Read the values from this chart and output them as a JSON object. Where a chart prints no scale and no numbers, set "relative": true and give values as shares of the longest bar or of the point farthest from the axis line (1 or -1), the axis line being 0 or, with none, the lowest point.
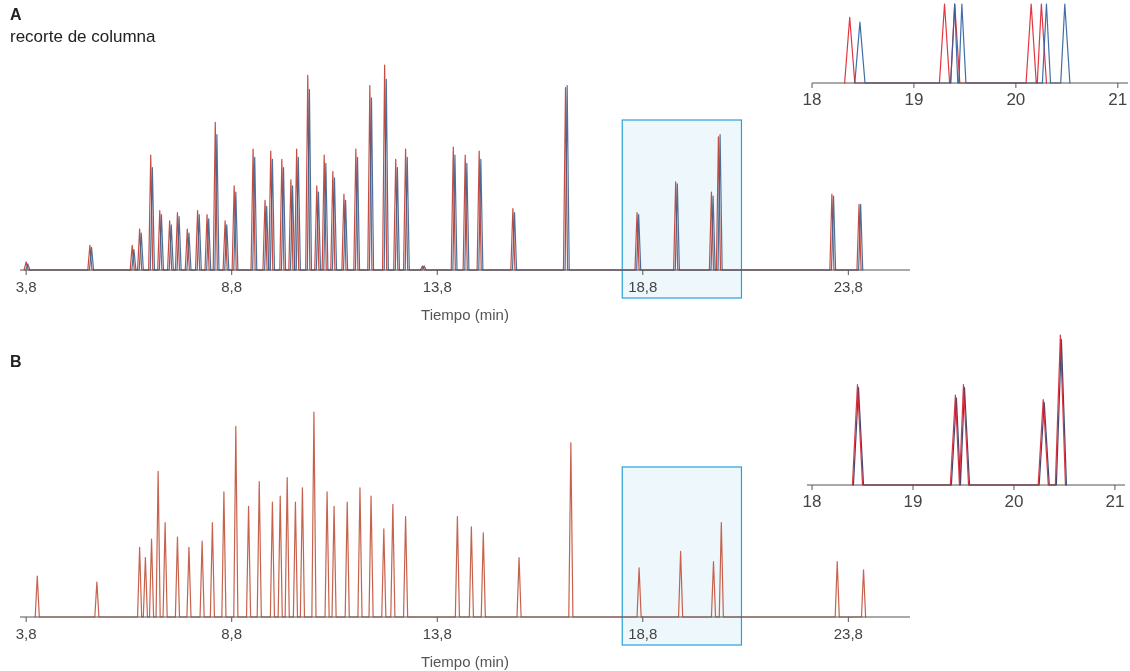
{
  "chart_data": [
    {
      "type": "line",
      "title": "A",
      "subtitle": "recorte de columna",
      "xlabel": "Tiempo (min)",
      "relative": true,
      "xlim": [
        3.65,
        25.3
      ],
      "xticks": [
        {
          "value": 3.8,
          "label": "3,8"
        },
        {
          "value": 8.8,
          "label": "8,8"
        },
        {
          "value": 13.8,
          "label": "13,8"
        },
        {
          "value": 18.8,
          "label": "18,8"
        },
        {
          "value": 23.8,
          "label": "23,8"
        }
      ],
      "bands": [
        {
          "axis": "x",
          "from": 18.3,
          "to": 21.2,
          "color": "#29a3d6"
        }
      ],
      "series": [
        {
          "color": "#c0392b",
          "x": [
            3.75,
            3.8,
            3.85,
            5.3,
            5.35,
            5.4,
            6.33,
            6.38,
            6.43,
            6.51,
            6.56,
            6.61,
            6.78,
            6.83,
            6.88,
            7.0,
            7.05,
            7.1,
            7.24,
            7.29,
            7.34,
            7.43,
            7.48,
            7.53,
            7.67,
            7.72,
            7.77,
            7.92,
            7.97,
            8.02,
            8.15,
            8.2,
            8.25,
            8.35,
            8.4,
            8.45,
            8.59,
            8.64,
            8.69,
            8.81,
            8.86,
            8.91,
            9.27,
            9.32,
            9.37,
            9.56,
            9.61,
            9.66,
            9.7,
            9.75,
            9.8,
            9.97,
            10.02,
            10.07,
            10.19,
            10.24,
            10.29,
            10.33,
            10.38,
            10.43,
            10.6,
            10.65,
            10.7,
            10.82,
            10.87,
            10.92,
            11.0,
            11.05,
            11.1,
            11.21,
            11.26,
            11.31,
            11.48,
            11.53,
            11.58,
            11.77,
            11.82,
            11.87,
            12.11,
            12.16,
            12.21,
            12.47,
            12.52,
            12.57,
            12.74,
            12.79,
            12.84,
            12.98,
            13.03,
            13.08,
            13.39,
            13.44,
            13.49,
            14.14,
            14.19,
            14.24,
            14.43,
            14.48,
            14.53,
            14.77,
            14.82,
            14.87,
            15.59,
            15.64,
            15.69,
            16.87,
            16.92,
            16.97,
            18.61,
            18.66,
            18.71,
            19.55,
            19.6,
            19.65,
            20.42,
            20.47,
            20.52,
            20.59,
            20.64,
            20.69,
            23.35,
            23.4,
            23.45,
            24.01,
            24.06,
            24.11
          ],
          "values": [
            0,
            0.04,
            0,
            0,
            0.12,
            0,
            0,
            0.12,
            0,
            0,
            0.2,
            0,
            0,
            0.56,
            0,
            0,
            0.29,
            0,
            0,
            0.24,
            0,
            0,
            0.28,
            0,
            0,
            0.2,
            0,
            0,
            0.29,
            0,
            0,
            0.27,
            0,
            0,
            0.72,
            0,
            0,
            0.24,
            0,
            0,
            0.41,
            0,
            0,
            0.59,
            0,
            0,
            0.34,
            0,
            0,
            0.58,
            0,
            0,
            0.54,
            0,
            0,
            0.44,
            0,
            0,
            0.59,
            0,
            0,
            0.95,
            0,
            0,
            0.41,
            0,
            0,
            0.56,
            0,
            0,
            0.48,
            0,
            0,
            0.37,
            0,
            0,
            0.59,
            0,
            0,
            0.9,
            0,
            0,
            1,
            0,
            0,
            0.54,
            0,
            0,
            0.59,
            0,
            0,
            0.02,
            0,
            0,
            0.6,
            0,
            0,
            0.56,
            0,
            0,
            0.58,
            0,
            0,
            0.3,
            0,
            0,
            0.89,
            0,
            0,
            0.28,
            0,
            0,
            0.43,
            0,
            0,
            0.38,
            0,
            0,
            0.65,
            0,
            0,
            0.37,
            0,
            0,
            0.32,
            0
          ]
        },
        {
          "color": "#3d5f8c",
          "x": [
            3.79,
            3.84,
            3.89,
            5.34,
            5.39,
            5.44,
            6.37,
            6.42,
            6.47,
            6.55,
            6.6,
            6.65,
            6.82,
            6.87,
            6.92,
            7.04,
            7.09,
            7.14,
            7.28,
            7.33,
            7.38,
            7.47,
            7.52,
            7.57,
            7.71,
            7.76,
            7.81,
            7.96,
            8.01,
            8.06,
            8.19,
            8.24,
            8.29,
            8.39,
            8.44,
            8.49,
            8.63,
            8.68,
            8.73,
            8.85,
            8.9,
            8.95,
            9.31,
            9.36,
            9.41,
            9.6,
            9.65,
            9.7,
            9.74,
            9.79,
            9.84,
            10.01,
            10.06,
            10.11,
            10.23,
            10.28,
            10.33,
            10.37,
            10.42,
            10.47,
            10.64,
            10.69,
            10.74,
            10.86,
            10.91,
            10.96,
            11.04,
            11.09,
            11.14,
            11.25,
            11.3,
            11.35,
            11.52,
            11.57,
            11.62,
            11.81,
            11.86,
            11.91,
            12.15,
            12.2,
            12.25,
            12.51,
            12.56,
            12.61,
            12.78,
            12.83,
            12.88,
            13.02,
            13.07,
            13.12,
            13.43,
            13.48,
            13.53,
            14.18,
            14.23,
            14.28,
            14.47,
            14.52,
            14.57,
            14.81,
            14.86,
            14.91,
            15.63,
            15.68,
            15.73,
            16.91,
            16.96,
            17.01,
            18.65,
            18.7,
            18.75,
            19.59,
            19.64,
            19.69,
            20.46,
            20.51,
            20.56,
            20.63,
            20.68,
            20.73,
            23.39,
            23.44,
            23.49,
            24.05,
            24.1,
            24.15
          ],
          "values": [
            0,
            0.03,
            0,
            0,
            0.11,
            0,
            0,
            0.1,
            0,
            0,
            0.18,
            0,
            0,
            0.5,
            0,
            0,
            0.27,
            0,
            0,
            0.22,
            0,
            0,
            0.26,
            0,
            0,
            0.18,
            0,
            0,
            0.27,
            0,
            0,
            0.25,
            0,
            0,
            0.66,
            0,
            0,
            0.22,
            0,
            0,
            0.38,
            0,
            0,
            0.55,
            0,
            0,
            0.31,
            0,
            0,
            0.54,
            0,
            0,
            0.5,
            0,
            0,
            0.41,
            0,
            0,
            0.55,
            0,
            0,
            0.88,
            0,
            0,
            0.38,
            0,
            0,
            0.52,
            0,
            0,
            0.45,
            0,
            0,
            0.34,
            0,
            0,
            0.55,
            0,
            0,
            0.84,
            0,
            0,
            0.93,
            0,
            0,
            0.5,
            0,
            0,
            0.55,
            0,
            0,
            0.02,
            0,
            0,
            0.56,
            0,
            0,
            0.52,
            0,
            0,
            0.54,
            0,
            0,
            0.28,
            0,
            0,
            0.9,
            0,
            0,
            0.27,
            0,
            0,
            0.42,
            0,
            0,
            0.36,
            0,
            0,
            0.66,
            0,
            0,
            0.36,
            0,
            0,
            0.32,
            0
          ]
        }
      ]
    },
    {
      "type": "line",
      "relative": true,
      "xlim": [
        18,
        21.1
      ],
      "xticks": [
        18,
        19,
        20,
        21
      ],
      "series": [
        {
          "color": "#e0202a",
          "x": [
            18.32,
            18.37,
            18.42,
            19.25,
            19.3,
            19.35,
            19.36,
            19.4,
            19.45,
            20.1,
            20.15,
            20.2,
            20.21,
            20.25,
            20.3
          ],
          "values": [
            0,
            0.83,
            0,
            0,
            1,
            0,
            0,
            1,
            0,
            0,
            1,
            0,
            0,
            1,
            0
          ]
        },
        {
          "color": "#2b5fa0",
          "x": [
            18.42,
            18.47,
            18.52,
            19.36,
            19.4,
            19.43,
            19.44,
            19.47,
            19.51,
            20.26,
            20.3,
            20.34,
            20.44,
            20.48,
            20.53
          ],
          "values": [
            0,
            0.77,
            0,
            0,
            1,
            0,
            0,
            1,
            0,
            0,
            1,
            0,
            0,
            1,
            0
          ]
        }
      ]
    },
    {
      "type": "line",
      "title": "B",
      "xlabel": "Tiempo (min)",
      "relative": true,
      "xlim": [
        3.65,
        25.3
      ],
      "xticks": [
        {
          "value": 3.8,
          "label": "3,8"
        },
        {
          "value": 8.8,
          "label": "8,8"
        },
        {
          "value": 13.8,
          "label": "13,8"
        },
        {
          "value": 18.8,
          "label": "18,8"
        },
        {
          "value": 23.8,
          "label": "23,8"
        }
      ],
      "bands": [
        {
          "axis": "x",
          "from": 18.3,
          "to": 21.2,
          "color": "#29a3d6"
        }
      ],
      "series": [
        {
          "color": "#c0513a",
          "x": [
            4.02,
            4.07,
            4.12,
            5.47,
            5.52,
            5.57,
            6.51,
            6.56,
            6.61,
            6.65,
            6.7,
            6.75,
            6.8,
            6.85,
            6.9,
            6.96,
            7.01,
            7.06,
            7.13,
            7.18,
            7.23,
            7.43,
            7.48,
            7.53,
            7.71,
            7.76,
            7.81,
            8.03,
            8.08,
            8.13,
            8.28,
            8.33,
            8.38,
            8.56,
            8.61,
            8.66,
            8.85,
            8.9,
            8.95,
            9.16,
            9.21,
            9.26,
            9.42,
            9.47,
            9.52,
            9.74,
            9.79,
            9.84,
            9.93,
            9.98,
            10.03,
            10.1,
            10.15,
            10.2,
            10.3,
            10.35,
            10.4,
            10.47,
            10.52,
            10.57,
            10.75,
            10.8,
            10.85,
            11.07,
            11.12,
            11.17,
            11.24,
            11.29,
            11.34,
            11.56,
            11.61,
            11.66,
            11.87,
            11.92,
            11.97,
            12.14,
            12.19,
            12.24,
            12.45,
            12.5,
            12.55,
            12.67,
            12.72,
            12.77,
            12.98,
            13.03,
            13.08,
            14.24,
            14.29,
            14.34,
            14.58,
            14.63,
            14.68,
            14.87,
            14.92,
            14.97,
            15.74,
            15.79,
            15.84,
            17.0,
            17.05,
            17.1,
            18.66,
            18.71,
            18.76,
            19.67,
            19.72,
            19.77,
            20.47,
            20.52,
            20.57,
            20.66,
            20.71,
            20.76,
            23.48,
            23.53,
            23.58,
            24.12,
            24.17,
            24.22
          ],
          "values": [
            0,
            0.2,
            0,
            0,
            0.17,
            0,
            0,
            0.34,
            0,
            0,
            0.29,
            0,
            0,
            0.38,
            0,
            0,
            0.71,
            0,
            0,
            0.46,
            0,
            0,
            0.39,
            0,
            0,
            0.34,
            0,
            0,
            0.37,
            0,
            0,
            0.46,
            0,
            0,
            0.61,
            0,
            0,
            0.93,
            0,
            0,
            0.54,
            0,
            0,
            0.66,
            0,
            0,
            0.56,
            0,
            0,
            0.59,
            0,
            0,
            0.68,
            0,
            0,
            0.56,
            0,
            0,
            0.63,
            0,
            0,
            1,
            0,
            0,
            0.61,
            0,
            0,
            0.54,
            0,
            0,
            0.56,
            0,
            0,
            0.63,
            0,
            0,
            0.59,
            0,
            0,
            0.43,
            0,
            0,
            0.55,
            0,
            0,
            0.49,
            0,
            0,
            0.49,
            0,
            0,
            0.44,
            0,
            0,
            0.41,
            0,
            0,
            0.29,
            0,
            0,
            0.85,
            0,
            0,
            0.24,
            0,
            0,
            0.32,
            0,
            0,
            0.27,
            0,
            0,
            0.46,
            0,
            0,
            0.27,
            0,
            0,
            0.23,
            0
          ]
        }
      ]
    },
    {
      "type": "line",
      "relative": true,
      "xlim": [
        17.95,
        21.1
      ],
      "xticks": [
        18,
        19,
        20,
        21
      ],
      "series": [
        {
          "color": "#2b3560",
          "x": [
            18.41,
            18.46,
            18.51,
            19.38,
            19.43,
            19.47,
            19.47,
            19.51,
            19.56,
            20.25,
            20.3,
            20.35,
            20.42,
            20.47,
            20.52
          ],
          "values": [
            0,
            0.65,
            0,
            0,
            0.58,
            0,
            0,
            0.65,
            0,
            0,
            0.55,
            0,
            0,
            0.97,
            0
          ]
        },
        {
          "color": "#d42030",
          "x": [
            18.4,
            18.45,
            18.5,
            19.37,
            19.42,
            19.46,
            19.46,
            19.5,
            19.55,
            20.24,
            20.29,
            20.34,
            20.41,
            20.46,
            20.51
          ],
          "values": [
            0,
            0.67,
            0,
            0,
            0.6,
            0,
            0,
            0.67,
            0,
            0,
            0.57,
            0,
            0,
            1,
            0
          ]
        }
      ]
    }
  ]
}
